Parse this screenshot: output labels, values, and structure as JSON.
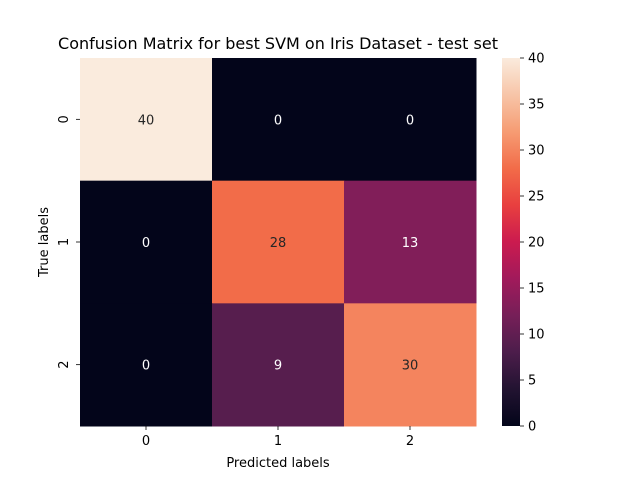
{
  "chart_data": {
    "type": "heatmap",
    "title": "Confusion Matrix for best SVM on Iris Dataset - test set",
    "xlabel": "Predicted labels",
    "ylabel": "True labels",
    "x_categories": [
      "0",
      "1",
      "2"
    ],
    "y_categories": [
      "0",
      "1",
      "2"
    ],
    "values": [
      [
        40,
        0,
        0
      ],
      [
        0,
        28,
        13
      ],
      [
        0,
        9,
        30
      ]
    ],
    "colorbar": {
      "range": [
        0,
        40
      ],
      "ticks": [
        0,
        5,
        10,
        15,
        20,
        25,
        30,
        35,
        40
      ],
      "colormap": "rocket"
    },
    "annotations": true,
    "grid": false
  }
}
